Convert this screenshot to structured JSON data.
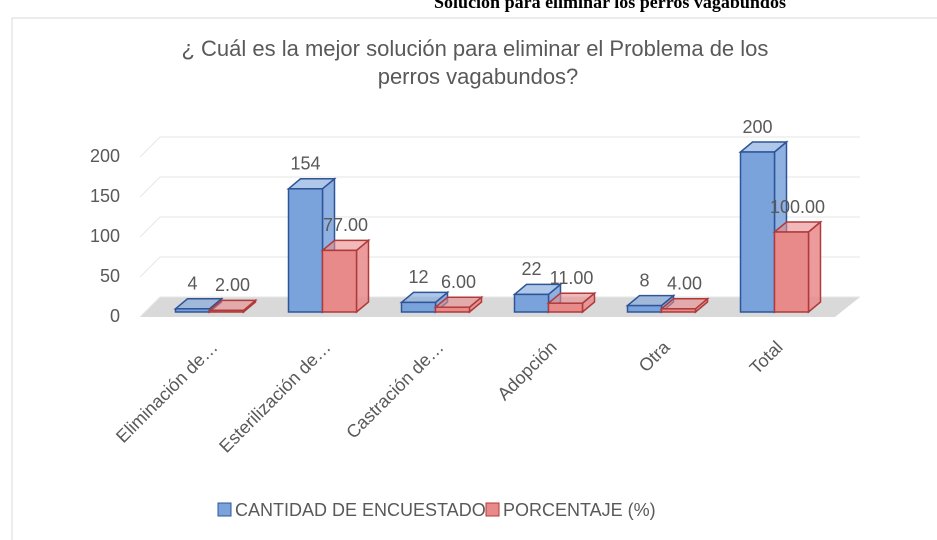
{
  "chart_data": {
    "type": "bar3d",
    "caption": "Solución para eliminar los perros vagabundos",
    "title": "¿ Cuál es la mejor solución para eliminar el Problema de los perros vagabundos?",
    "categories": [
      "Eliminación de…",
      "Esterilización de…",
      "Castración de…",
      "Adopción",
      "Otra",
      "Total"
    ],
    "series": [
      {
        "name": "CANTIDAD DE ENCUESTADOS",
        "color": "#7aa3dc",
        "edge_color": "#2f5597",
        "values": [
          4,
          154,
          12,
          22,
          8,
          200
        ]
      },
      {
        "name": "PORCENTAJE (%)",
        "color": "#e88a8a",
        "edge_color": "#b03a3a",
        "values": [
          2,
          77,
          6,
          11,
          4,
          100
        ],
        "value_labels": [
          "2.00",
          "77.00",
          "6.00",
          "11.00",
          "4.00",
          "100.00"
        ]
      }
    ],
    "ylim": [
      0,
      200
    ],
    "yticks": [
      0,
      50,
      100,
      150,
      200
    ],
    "grid": true,
    "legend": "bottom"
  }
}
